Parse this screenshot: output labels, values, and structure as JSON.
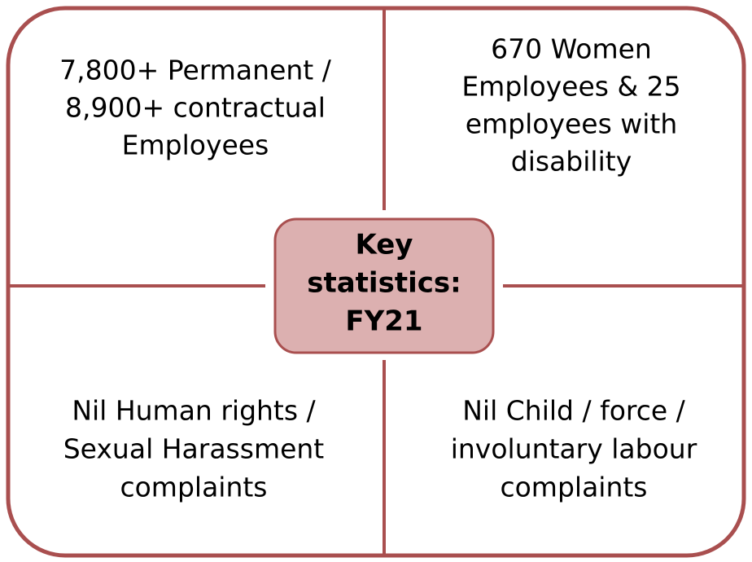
{
  "center": {
    "lines": [
      "Key",
      "statistics:",
      "FY21"
    ]
  },
  "quadrants": [
    {
      "lines": [
        "7,800+ Permanent /",
        "8,900+ contractual",
        "Employees"
      ]
    },
    {
      "lines": [
        "670 Women",
        "Employees & 25",
        "employees with",
        "disability"
      ]
    },
    {
      "lines": [
        "Nil Human rights /",
        "Sexual Harassment",
        "complaints"
      ]
    },
    {
      "lines": [
        "Nil Child / force /",
        "involuntary labour",
        "complaints"
      ]
    }
  ]
}
